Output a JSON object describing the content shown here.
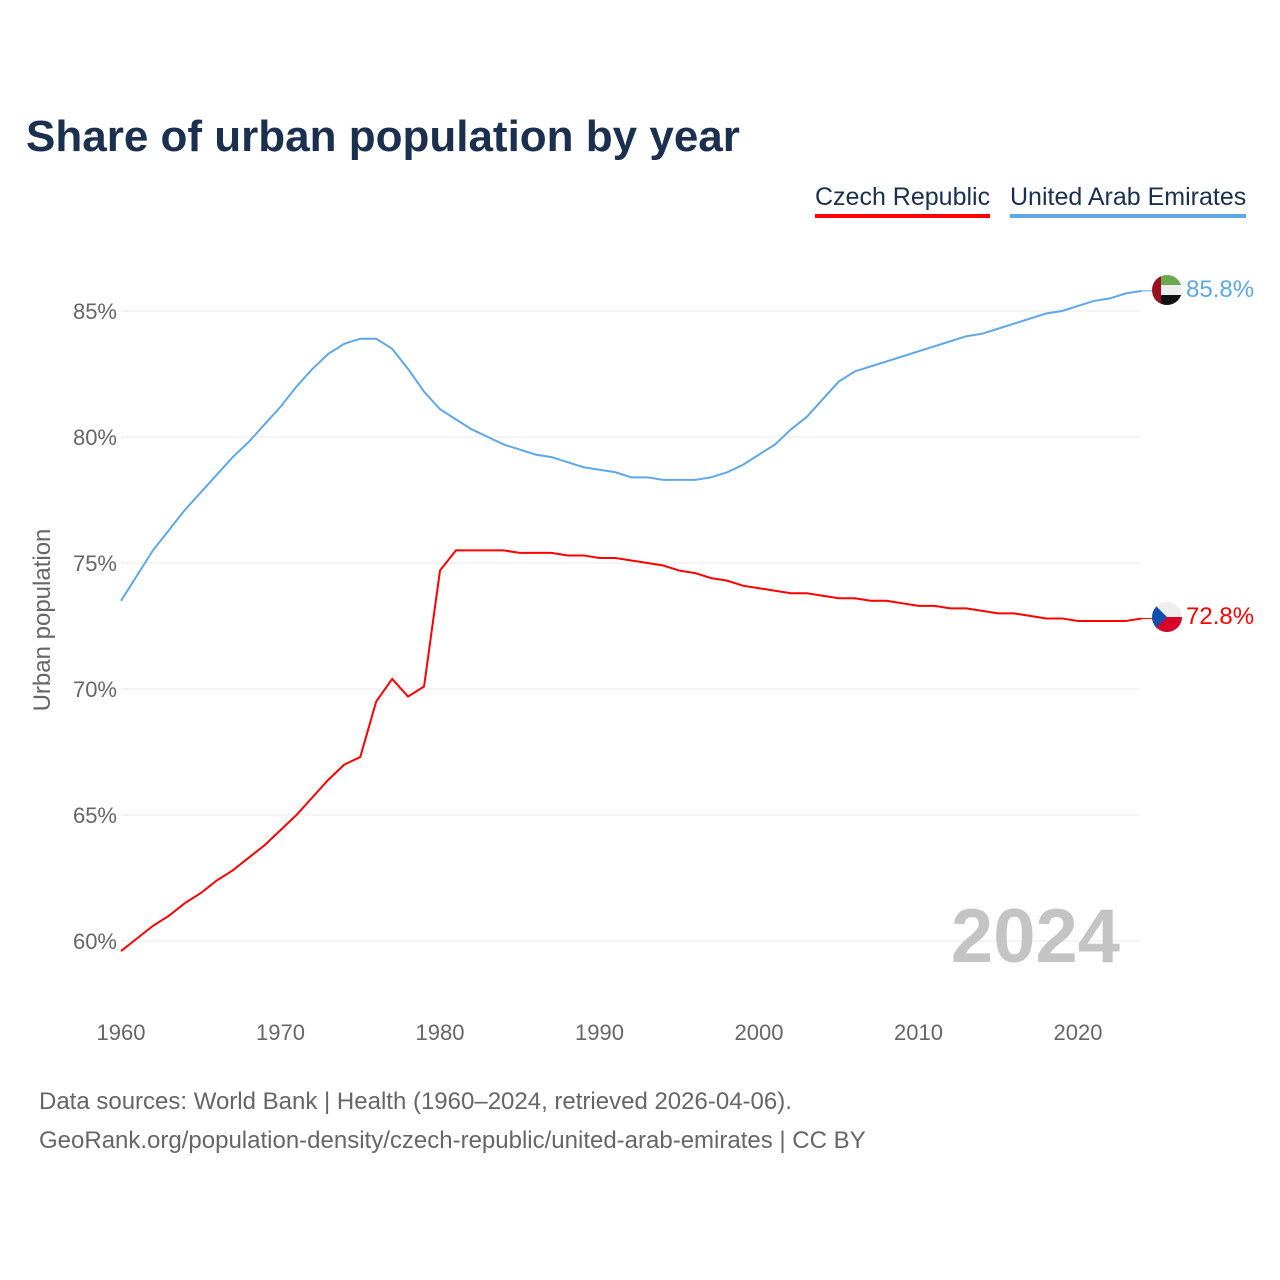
{
  "chart_data": {
    "type": "line",
    "title": "Share of urban population by year",
    "ylabel": "Urban population",
    "xlabel": "",
    "xlim": [
      1960,
      2024
    ],
    "ylim": [
      58.5,
      87.5
    ],
    "x_ticks": [
      1960,
      1970,
      1980,
      1990,
      2000,
      2010,
      2020
    ],
    "y_ticks": [
      60,
      65,
      70,
      75,
      80,
      85
    ],
    "y_tick_labels": [
      "60%",
      "65%",
      "70%",
      "75%",
      "80%",
      "85%"
    ],
    "grid": true,
    "legend_position": "top-right",
    "year_watermark": "2024",
    "x": [
      1960,
      1961,
      1962,
      1963,
      1964,
      1965,
      1966,
      1967,
      1968,
      1969,
      1970,
      1971,
      1972,
      1973,
      1974,
      1975,
      1976,
      1977,
      1978,
      1979,
      1980,
      1981,
      1982,
      1983,
      1984,
      1985,
      1986,
      1987,
      1988,
      1989,
      1990,
      1991,
      1992,
      1993,
      1994,
      1995,
      1996,
      1997,
      1998,
      1999,
      2000,
      2001,
      2002,
      2003,
      2004,
      2005,
      2006,
      2007,
      2008,
      2009,
      2010,
      2011,
      2012,
      2013,
      2014,
      2015,
      2016,
      2017,
      2018,
      2019,
      2020,
      2021,
      2022,
      2023,
      2024
    ],
    "series": [
      {
        "name": "Czech Republic",
        "color": "#ff0000",
        "end_label": "72.8%",
        "flag": "czech-flag",
        "values": [
          59.6,
          60.1,
          60.6,
          61.0,
          61.5,
          61.9,
          62.4,
          62.8,
          63.3,
          63.8,
          64.4,
          65.0,
          65.7,
          66.4,
          67.0,
          67.3,
          69.5,
          70.4,
          69.7,
          70.1,
          74.7,
          75.5,
          75.5,
          75.5,
          75.5,
          75.4,
          75.4,
          75.4,
          75.3,
          75.3,
          75.2,
          75.2,
          75.1,
          75.0,
          74.9,
          74.7,
          74.6,
          74.4,
          74.3,
          74.1,
          74.0,
          73.9,
          73.8,
          73.8,
          73.7,
          73.6,
          73.6,
          73.5,
          73.5,
          73.4,
          73.3,
          73.3,
          73.2,
          73.2,
          73.1,
          73.0,
          73.0,
          72.9,
          72.8,
          72.8,
          72.7,
          72.7,
          72.7,
          72.7,
          72.8
        ]
      },
      {
        "name": "United Arab Emirates",
        "color": "#5ea8e8",
        "end_label": "85.8%",
        "flag": "uae-flag",
        "values": [
          73.5,
          74.5,
          75.5,
          76.3,
          77.1,
          77.8,
          78.5,
          79.2,
          79.8,
          80.5,
          81.2,
          82.0,
          82.7,
          83.3,
          83.7,
          83.9,
          83.9,
          83.5,
          82.7,
          81.8,
          81.1,
          80.7,
          80.3,
          80.0,
          79.7,
          79.5,
          79.3,
          79.2,
          79.0,
          78.8,
          78.7,
          78.6,
          78.4,
          78.4,
          78.3,
          78.3,
          78.3,
          78.4,
          78.6,
          78.9,
          79.3,
          79.7,
          80.3,
          80.8,
          81.5,
          82.2,
          82.6,
          82.8,
          83.0,
          83.2,
          83.4,
          83.6,
          83.8,
          84.0,
          84.1,
          84.3,
          84.5,
          84.7,
          84.9,
          85.0,
          85.2,
          85.4,
          85.5,
          85.7,
          85.8
        ]
      }
    ]
  },
  "footer": {
    "line1": "Data sources: World Bank | Health (1960–2024, retrieved 2026-04-06).",
    "line2": "GeoRank.org/population-density/czech-republic/united-arab-emirates | CC BY"
  }
}
